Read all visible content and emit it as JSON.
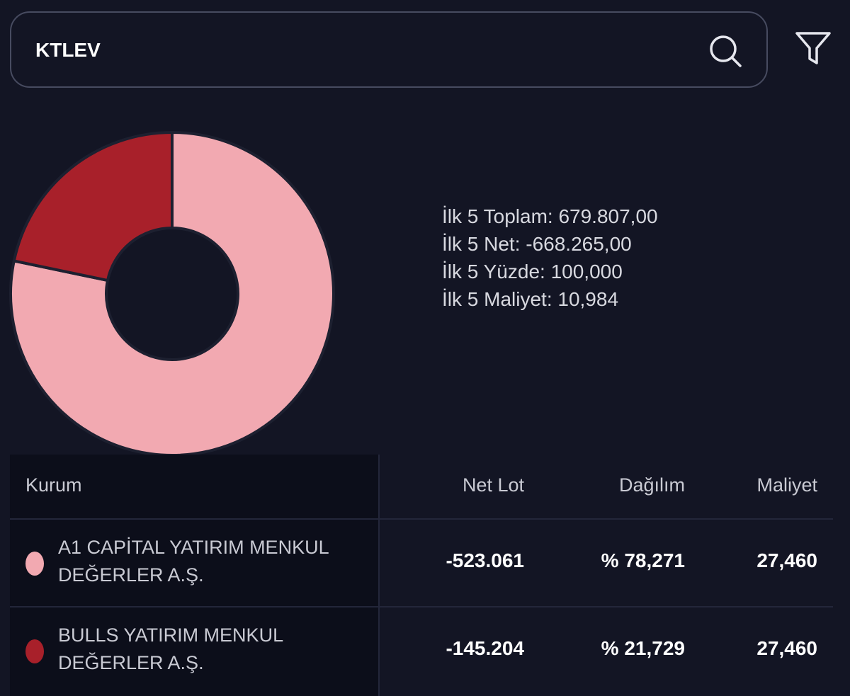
{
  "search": {
    "value": "KTLEV",
    "placeholder": ""
  },
  "icons": {
    "search": "search-icon",
    "filter": "filter-icon"
  },
  "colors": {
    "background": "#131524",
    "slice_primary": "#f2a9b1",
    "slice_secondary": "#a8202a"
  },
  "summary": {
    "total": "İlk 5 Toplam: 679.807,00",
    "net": "İlk 5 Net: -668.265,00",
    "percent": "İlk 5 Yüzde: 100,000",
    "cost": "İlk 5 Maliyet: 10,984"
  },
  "chart_data": {
    "type": "pie",
    "categories": [
      "A1 CAPİTAL YATIRIM MENKUL DEĞERLER A.Ş.",
      "BULLS YATIRIM MENKUL DEĞERLER A.Ş."
    ],
    "values": [
      78.271,
      21.729
    ],
    "colors": [
      "#f2a9b1",
      "#a8202a"
    ],
    "donut": true
  },
  "table": {
    "headers": {
      "kurum": "Kurum",
      "net_lot": "Net Lot",
      "dagilim": "Dağılım",
      "maliyet": "Maliyet"
    },
    "rows": [
      {
        "name": "A1 CAPİTAL YATIRIM MENKUL DEĞERLER A.Ş.",
        "net_lot": "-523.061",
        "dagilim": "% 78,271",
        "maliyet": "27,460",
        "color": "#f2a9b1"
      },
      {
        "name": "BULLS YATIRIM MENKUL DEĞERLER A.Ş.",
        "net_lot": "-145.204",
        "dagilim": "% 21,729",
        "maliyet": "27,460",
        "color": "#a8202a"
      }
    ]
  }
}
